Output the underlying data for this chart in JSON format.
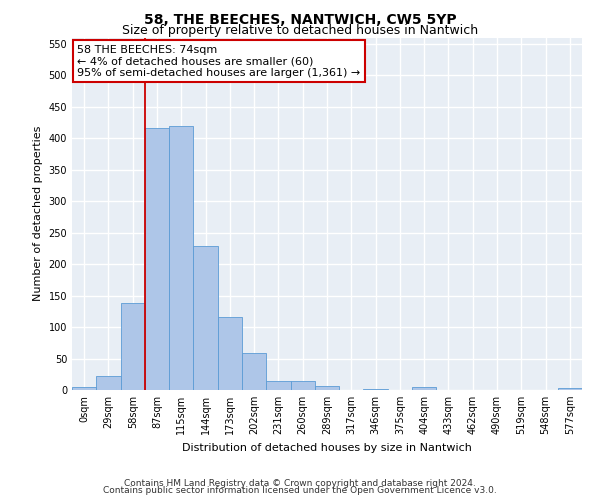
{
  "title": "58, THE BEECHES, NANTWICH, CW5 5YP",
  "subtitle": "Size of property relative to detached houses in Nantwich",
  "xlabel": "Distribution of detached houses by size in Nantwich",
  "ylabel": "Number of detached properties",
  "categories": [
    "0sqm",
    "29sqm",
    "58sqm",
    "87sqm",
    "115sqm",
    "144sqm",
    "173sqm",
    "202sqm",
    "231sqm",
    "260sqm",
    "289sqm",
    "317sqm",
    "346sqm",
    "375sqm",
    "404sqm",
    "433sqm",
    "462sqm",
    "490sqm",
    "519sqm",
    "548sqm",
    "577sqm"
  ],
  "values": [
    4,
    22,
    138,
    417,
    420,
    228,
    116,
    58,
    14,
    15,
    6,
    0,
    2,
    0,
    4,
    0,
    0,
    0,
    0,
    0,
    3
  ],
  "bar_color": "#aec6e8",
  "bar_edge_color": "#5b9bd5",
  "vline_x": 2.5,
  "annotation_text": "58 THE BEECHES: 74sqm\n← 4% of detached houses are smaller (60)\n95% of semi-detached houses are larger (1,361) →",
  "annotation_box_color": "#ffffff",
  "annotation_box_edge_color": "#cc0000",
  "ylim": [
    0,
    560
  ],
  "yticks": [
    0,
    50,
    100,
    150,
    200,
    250,
    300,
    350,
    400,
    450,
    500,
    550
  ],
  "background_color": "#e8eef5",
  "grid_color": "#ffffff",
  "footer_line1": "Contains HM Land Registry data © Crown copyright and database right 2024.",
  "footer_line2": "Contains public sector information licensed under the Open Government Licence v3.0.",
  "title_fontsize": 10,
  "subtitle_fontsize": 9,
  "axis_label_fontsize": 8,
  "tick_fontsize": 7,
  "footer_fontsize": 6.5,
  "annotation_fontsize": 8
}
